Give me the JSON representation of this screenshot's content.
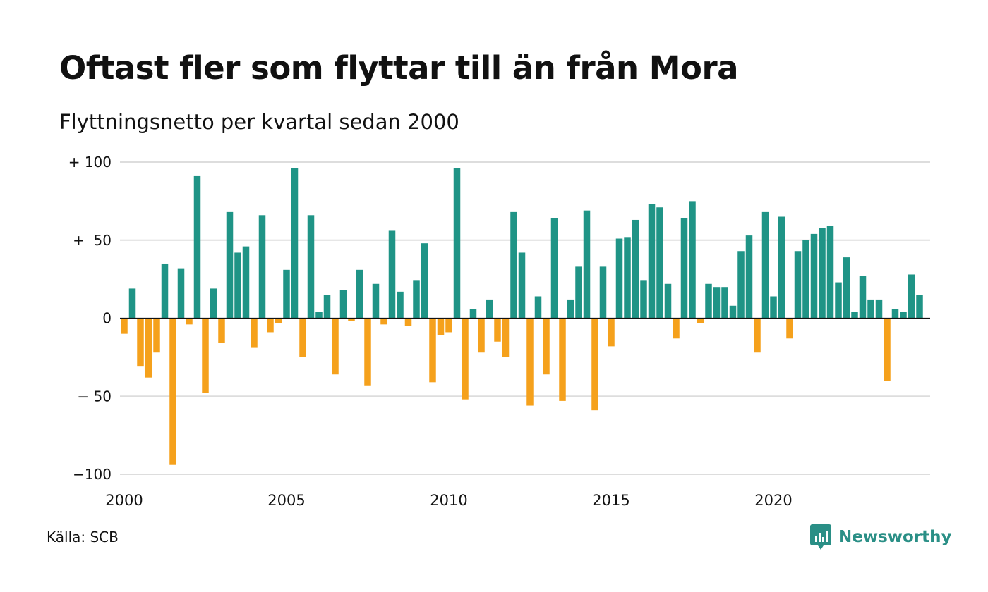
{
  "header": {
    "title": "Oftast fler som flyttar till än från Mora",
    "subtitle": "Flyttningsnetto per kvartal sedan 2000"
  },
  "footer": {
    "source": "Källa: SCB",
    "brand": "Newsworthy",
    "brand_icon": "bar-chart-speech-bubble-icon"
  },
  "colors": {
    "positive": "#1f9486",
    "negative": "#f5a11c",
    "grid": "#dddddd",
    "brand": "#2a8f86"
  },
  "chart_data": {
    "type": "bar",
    "title": "Oftast fler som flyttar till än från Mora",
    "subtitle": "Flyttningsnetto per kvartal sedan 2000",
    "x_start": "2000 Q1",
    "x_step": "1 quarter",
    "x_ticks": [
      "2000",
      "2005",
      "2010",
      "2015",
      "2020"
    ],
    "y_ticks": [
      {
        "value": 100,
        "label": "+ 100"
      },
      {
        "value": 50,
        "label": "+  50"
      },
      {
        "value": 0,
        "label": "0"
      },
      {
        "value": -50,
        "label": "− 50"
      },
      {
        "value": -100,
        "label": "−100"
      }
    ],
    "ylim": [
      -100,
      100
    ],
    "grid": true,
    "values": [
      -10,
      19,
      -31,
      -38,
      -22,
      35,
      -94,
      32,
      -4,
      91,
      -48,
      19,
      -16,
      68,
      42,
      46,
      -19,
      66,
      -9,
      -3,
      31,
      96,
      -25,
      66,
      4,
      15,
      -36,
      18,
      -2,
      31,
      -43,
      22,
      -4,
      56,
      17,
      -5,
      24,
      48,
      -41,
      -11,
      -9,
      96,
      -52,
      6,
      -22,
      12,
      -15,
      -25,
      68,
      42,
      -56,
      14,
      -36,
      64,
      -53,
      12,
      33,
      69,
      -59,
      33,
      -18,
      51,
      52,
      63,
      24,
      73,
      71,
      22,
      -13,
      64,
      75,
      -3,
      22,
      20,
      20,
      8,
      43,
      53,
      -22,
      68,
      14,
      65,
      -13,
      43,
      50,
      54,
      58,
      59,
      23,
      39,
      4,
      27,
      12,
      12,
      -40,
      6,
      4,
      28,
      15
    ]
  }
}
